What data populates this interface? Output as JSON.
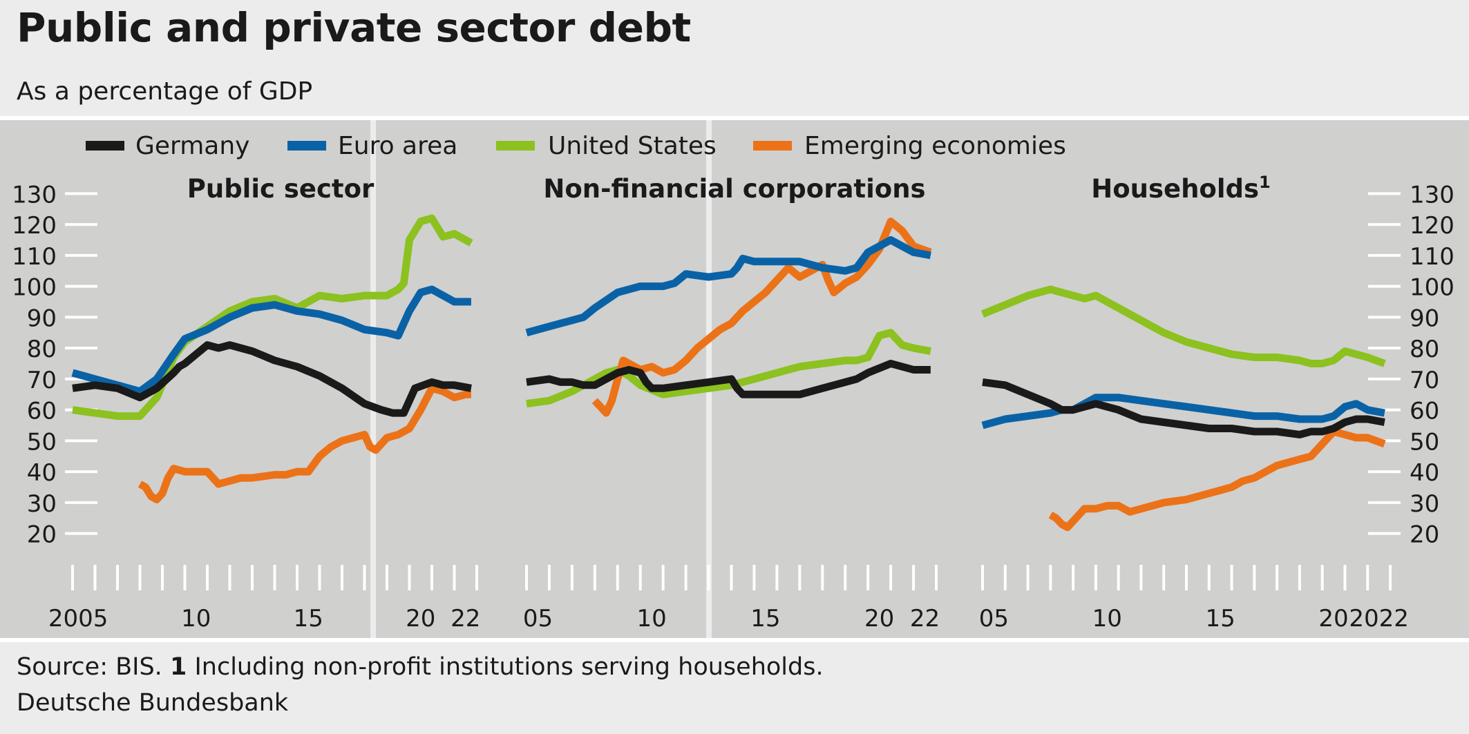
{
  "title": "Public and private sector debt",
  "subtitle": "As a percentage of GDP",
  "footer": {
    "source_prefix": "Source: BIS.",
    "footnote_number": "1",
    "footnote_text": "Including non-profit institutions serving households.",
    "brand": "Deutsche Bundesbank"
  },
  "colors": {
    "Germany": "#1a1a1a",
    "Euro area": "#0a62a6",
    "United States": "#8cc11f",
    "Emerging economies": "#ec7218",
    "panel_bg": "#d0d0cf",
    "page_bg": "#ececec"
  },
  "chart_data": [
    {
      "type": "line",
      "title": "Public sector",
      "x_tick_labels": [
        "2005",
        "10",
        "15",
        "20",
        "22"
      ],
      "y_ticks": [
        20,
        30,
        40,
        50,
        60,
        70,
        80,
        90,
        100,
        110,
        120,
        130
      ],
      "ylim": [
        15,
        135
      ],
      "xlim": [
        2005.0,
        2023.0
      ],
      "grid": false,
      "legend_position": "top",
      "series": [
        {
          "name": "Germany",
          "x": [
            2005.0,
            2006.0,
            2007.0,
            2008.0,
            2008.75,
            2009.5,
            2009.75,
            2010.0,
            2011.0,
            2011.5,
            2012.0,
            2013.0,
            2014.0,
            2015.0,
            2016.0,
            2017.0,
            2018.0,
            2018.75,
            2019.25,
            2019.75,
            2020.25,
            2021.0,
            2021.5,
            2022.0,
            2022.75
          ],
          "y": [
            67,
            68,
            67,
            64,
            67,
            72,
            74,
            75,
            81,
            80,
            81,
            79,
            76,
            74,
            71,
            67,
            62,
            60,
            59,
            59,
            67,
            69,
            68,
            68,
            67
          ]
        },
        {
          "name": "Euro area",
          "x": [
            2005.0,
            2006.0,
            2007.0,
            2008.0,
            2008.75,
            2009.5,
            2010.0,
            2011.0,
            2012.0,
            2013.0,
            2014.0,
            2015.0,
            2016.0,
            2017.0,
            2018.0,
            2019.0,
            2019.5,
            2020.0,
            2020.5,
            2021.0,
            2021.5,
            2022.0,
            2022.75
          ],
          "y": [
            72,
            70,
            68,
            66,
            70,
            78,
            83,
            86,
            90,
            93,
            94,
            92,
            91,
            89,
            86,
            85,
            84,
            92,
            98,
            99,
            97,
            95,
            95
          ]
        },
        {
          "name": "United States",
          "x": [
            2005.0,
            2006.0,
            2007.0,
            2008.0,
            2008.75,
            2009.5,
            2010.0,
            2011.0,
            2012.0,
            2013.0,
            2014.0,
            2015.0,
            2016.0,
            2017.0,
            2018.0,
            2019.0,
            2019.5,
            2019.75,
            2020.0,
            2020.5,
            2021.0,
            2021.5,
            2022.0,
            2022.75
          ],
          "y": [
            60,
            59,
            58,
            58,
            64,
            77,
            82,
            87,
            92,
            95,
            96,
            93,
            97,
            96,
            97,
            97,
            99,
            101,
            115,
            121,
            122,
            116,
            117,
            114
          ]
        },
        {
          "name": "Emerging economies",
          "x": [
            2008.0,
            2008.25,
            2008.5,
            2008.75,
            2009.0,
            2009.25,
            2009.5,
            2010.0,
            2010.5,
            2011.0,
            2011.5,
            2012.0,
            2012.5,
            2013.0,
            2014.0,
            2014.5,
            2015.0,
            2015.5,
            2016.0,
            2016.5,
            2017.0,
            2017.5,
            2018.0,
            2018.25,
            2018.5,
            2019.0,
            2019.5,
            2020.0,
            2020.5,
            2021.0,
            2021.5,
            2022.0,
            2022.5,
            2022.75
          ],
          "y": [
            36,
            35,
            32,
            31,
            33,
            38,
            41,
            40,
            40,
            40,
            36,
            37,
            38,
            38,
            39,
            39,
            40,
            40,
            45,
            48,
            50,
            51,
            52,
            48,
            47,
            51,
            52,
            54,
            60,
            67,
            66,
            64,
            65,
            65
          ]
        }
      ]
    },
    {
      "type": "line",
      "title": "Non-financial corporations",
      "x_tick_labels": [
        "05",
        "10",
        "15",
        "20",
        "22"
      ],
      "y_ticks": [
        20,
        30,
        40,
        50,
        60,
        70,
        80,
        90,
        100,
        110,
        120,
        130
      ],
      "ylim": [
        15,
        135
      ],
      "xlim": [
        2005.0,
        2023.0
      ],
      "grid": false,
      "series": [
        {
          "name": "Germany",
          "x": [
            2005.0,
            2006.0,
            2006.5,
            2007.0,
            2007.5,
            2008.0,
            2008.5,
            2009.0,
            2009.5,
            2010.0,
            2010.25,
            2010.5,
            2011.0,
            2012.0,
            2013.0,
            2014.0,
            2014.25,
            2014.5,
            2015.0,
            2016.0,
            2017.0,
            2018.0,
            2019.0,
            2019.5,
            2020.0,
            2021.0,
            2021.5,
            2022.0,
            2022.75
          ],
          "y": [
            69,
            70,
            69,
            69,
            68,
            68,
            70,
            72,
            73,
            72,
            69,
            67,
            67,
            68,
            69,
            70,
            67,
            65,
            65,
            65,
            65,
            67,
            69,
            70,
            72,
            75,
            74,
            73,
            73
          ]
        },
        {
          "name": "Euro area",
          "x": [
            2005.0,
            2006.0,
            2006.5,
            2007.0,
            2007.5,
            2008.0,
            2009.0,
            2010.0,
            2011.0,
            2011.5,
            2012.0,
            2013.0,
            2014.0,
            2014.25,
            2014.5,
            2015.0,
            2016.0,
            2017.0,
            2018.0,
            2019.0,
            2019.5,
            2020.0,
            2021.0,
            2021.5,
            2022.0,
            2022.75
          ],
          "y": [
            85,
            87,
            88,
            89,
            90,
            93,
            98,
            100,
            100,
            101,
            104,
            103,
            104,
            106,
            109,
            108,
            108,
            108,
            106,
            105,
            106,
            111,
            115,
            113,
            111,
            110
          ]
        },
        {
          "name": "United States",
          "x": [
            2005.0,
            2006.0,
            2007.0,
            2008.0,
            2008.5,
            2009.0,
            2009.5,
            2010.0,
            2011.0,
            2012.0,
            2013.0,
            2014.0,
            2015.0,
            2016.0,
            2017.0,
            2018.0,
            2019.0,
            2019.5,
            2020.0,
            2020.5,
            2021.0,
            2021.5,
            2022.0,
            2022.75
          ],
          "y": [
            62,
            63,
            66,
            70,
            72,
            73,
            71,
            68,
            65,
            66,
            67,
            68,
            70,
            72,
            74,
            75,
            76,
            76,
            77,
            84,
            85,
            81,
            80,
            79
          ]
        },
        {
          "name": "Emerging economies",
          "x": [
            2008.0,
            2008.25,
            2008.5,
            2008.75,
            2009.0,
            2009.25,
            2009.5,
            2010.0,
            2010.5,
            2011.0,
            2011.5,
            2012.0,
            2012.5,
            2013.0,
            2013.5,
            2014.0,
            2014.5,
            2015.0,
            2015.5,
            2016.0,
            2016.5,
            2017.0,
            2017.5,
            2018.0,
            2018.25,
            2018.5,
            2019.0,
            2019.5,
            2020.0,
            2020.5,
            2021.0,
            2021.5,
            2022.0,
            2022.75
          ],
          "y": [
            63,
            61,
            59,
            63,
            70,
            76,
            75,
            73,
            74,
            72,
            73,
            76,
            80,
            83,
            86,
            88,
            92,
            95,
            98,
            102,
            106,
            103,
            105,
            107,
            102,
            98,
            101,
            103,
            107,
            112,
            121,
            118,
            113,
            111
          ]
        }
      ]
    },
    {
      "type": "line",
      "title": "Households",
      "title_footnote": "1",
      "x_tick_labels": [
        "05",
        "10",
        "15",
        "20",
        "2022"
      ],
      "y_ticks": [
        20,
        30,
        40,
        50,
        60,
        70,
        80,
        90,
        100,
        110,
        120,
        130
      ],
      "ylim": [
        15,
        135
      ],
      "xlim": [
        2005.0,
        2023.0
      ],
      "grid": false,
      "series": [
        {
          "name": "Germany",
          "x": [
            2005.0,
            2006.0,
            2007.0,
            2008.0,
            2008.5,
            2009.0,
            2009.5,
            2010.0,
            2011.0,
            2012.0,
            2013.0,
            2014.0,
            2015.0,
            2016.0,
            2017.0,
            2018.0,
            2019.0,
            2019.5,
            2020.0,
            2020.5,
            2021.0,
            2021.5,
            2022.0,
            2022.75
          ],
          "y": [
            69,
            68,
            65,
            62,
            60,
            60,
            61,
            62,
            60,
            57,
            56,
            55,
            54,
            54,
            53,
            53,
            52,
            53,
            53,
            54,
            56,
            57,
            57,
            56
          ]
        },
        {
          "name": "Euro area",
          "x": [
            2005.0,
            2006.0,
            2007.0,
            2008.0,
            2008.5,
            2009.0,
            2009.5,
            2010.0,
            2011.0,
            2012.0,
            2013.0,
            2014.0,
            2015.0,
            2016.0,
            2017.0,
            2018.0,
            2019.0,
            2019.5,
            2020.0,
            2020.5,
            2021.0,
            2021.5,
            2022.0,
            2022.75
          ],
          "y": [
            55,
            57,
            58,
            59,
            60,
            60,
            62,
            64,
            64,
            63,
            62,
            61,
            60,
            59,
            58,
            58,
            57,
            57,
            57,
            58,
            61,
            62,
            60,
            59
          ]
        },
        {
          "name": "United States",
          "x": [
            2005.0,
            2006.0,
            2007.0,
            2008.0,
            2008.5,
            2009.0,
            2009.5,
            2010.0,
            2011.0,
            2012.0,
            2013.0,
            2014.0,
            2015.0,
            2016.0,
            2017.0,
            2018.0,
            2019.0,
            2019.5,
            2020.0,
            2020.5,
            2021.0,
            2021.5,
            2022.0,
            2022.75
          ],
          "y": [
            91,
            94,
            97,
            99,
            98,
            97,
            96,
            97,
            93,
            89,
            85,
            82,
            80,
            78,
            77,
            77,
            76,
            75,
            75,
            76,
            79,
            78,
            77,
            75
          ]
        },
        {
          "name": "Emerging economies",
          "x": [
            2008.0,
            2008.25,
            2008.5,
            2008.75,
            2009.0,
            2009.25,
            2009.5,
            2010.0,
            2010.5,
            2011.0,
            2011.5,
            2012.0,
            2012.5,
            2013.0,
            2014.0,
            2015.0,
            2016.0,
            2016.5,
            2017.0,
            2017.5,
            2018.0,
            2018.5,
            2019.0,
            2019.5,
            2020.0,
            2020.5,
            2021.0,
            2021.5,
            2022.0,
            2022.75
          ],
          "y": [
            26,
            25,
            23,
            22,
            24,
            26,
            28,
            28,
            29,
            29,
            27,
            28,
            29,
            30,
            31,
            33,
            35,
            37,
            38,
            40,
            42,
            43,
            44,
            45,
            49,
            53,
            52,
            51,
            51,
            49
          ]
        }
      ]
    }
  ]
}
